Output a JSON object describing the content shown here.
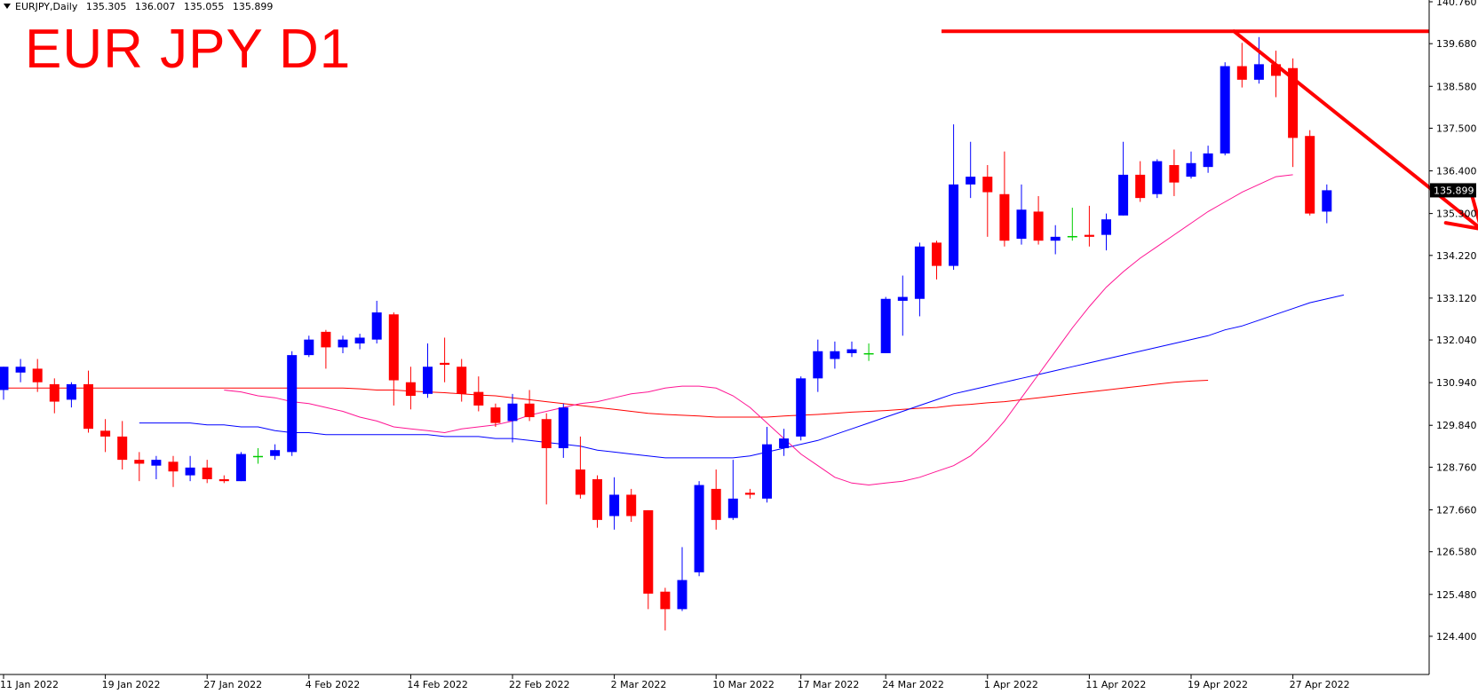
{
  "header": {
    "symbol": "EURJPY,Daily",
    "open": "135.305",
    "high": "136.007",
    "low": "135.055",
    "close": "135.899"
  },
  "annotation": {
    "title_text": "EUR JPY D1",
    "color": "#ff0000"
  },
  "chart_data": {
    "type": "candlestick",
    "title": "EUR JPY D1",
    "price_label": "135.899",
    "y_axis": {
      "min": 123.85,
      "max": 140.76,
      "ticks": [
        "140.760",
        "139.680",
        "138.580",
        "137.500",
        "136.400",
        "135.300",
        "134.220",
        "133.120",
        "132.040",
        "130.940",
        "129.840",
        "128.760",
        "127.660",
        "126.580",
        "125.480",
        "124.400"
      ]
    },
    "x_axis": {
      "labels": [
        {
          "text": "11 Jan 2022",
          "i": 0
        },
        {
          "text": "19 Jan 2022",
          "i": 6
        },
        {
          "text": "27 Jan 2022",
          "i": 12
        },
        {
          "text": "4 Feb 2022",
          "i": 18
        },
        {
          "text": "14 Feb 2022",
          "i": 24
        },
        {
          "text": "22 Feb 2022",
          "i": 30
        },
        {
          "text": "2 Mar 2022",
          "i": 36
        },
        {
          "text": "10 Mar 2022",
          "i": 42
        },
        {
          "text": "17 Mar 2022",
          "i": 47
        },
        {
          "text": "24 Mar 2022",
          "i": 52
        },
        {
          "text": "1 Apr 2022",
          "i": 58
        },
        {
          "text": "11 Apr 2022",
          "i": 64
        },
        {
          "text": "19 Apr 2022",
          "i": 70
        },
        {
          "text": "27 Apr 2022",
          "i": 76
        }
      ]
    },
    "colors": {
      "bull": "#0000ff",
      "bear": "#ff0000",
      "doji": "#00cc00",
      "ma_fast": "#ff1493",
      "ma_mid": "#0000ff",
      "ma_slow": "#ff0000",
      "annotation": "#ff0000"
    },
    "candles": [
      {
        "o": 130.75,
        "h": 131.35,
        "l": 130.5,
        "c": 131.35
      },
      {
        "o": 131.2,
        "h": 131.55,
        "l": 130.95,
        "c": 131.35
      },
      {
        "o": 131.3,
        "h": 131.55,
        "l": 130.7,
        "c": 130.95
      },
      {
        "o": 130.9,
        "h": 131.05,
        "l": 130.15,
        "c": 130.45
      },
      {
        "o": 130.5,
        "h": 130.95,
        "l": 130.3,
        "c": 130.9
      },
      {
        "o": 130.9,
        "h": 131.25,
        "l": 129.65,
        "c": 129.75
      },
      {
        "o": 129.7,
        "h": 130.0,
        "l": 129.15,
        "c": 129.55
      },
      {
        "o": 129.55,
        "h": 129.95,
        "l": 128.7,
        "c": 128.95
      },
      {
        "o": 128.95,
        "h": 129.15,
        "l": 128.4,
        "c": 128.85
      },
      {
        "o": 128.8,
        "h": 129.05,
        "l": 128.45,
        "c": 128.95
      },
      {
        "o": 128.9,
        "h": 129.05,
        "l": 128.25,
        "c": 128.65
      },
      {
        "o": 128.55,
        "h": 129.05,
        "l": 128.4,
        "c": 128.75
      },
      {
        "o": 128.75,
        "h": 128.95,
        "l": 128.35,
        "c": 128.45
      },
      {
        "o": 128.45,
        "h": 128.55,
        "l": 128.35,
        "c": 128.4
      },
      {
        "o": 128.4,
        "h": 129.15,
        "l": 128.4,
        "c": 129.1
      },
      {
        "o": 129.05,
        "h": 129.25,
        "l": 128.85,
        "c": 129.05
      },
      {
        "o": 129.05,
        "h": 129.35,
        "l": 128.95,
        "c": 129.2
      },
      {
        "o": 129.15,
        "h": 131.75,
        "l": 129.05,
        "c": 131.65
      },
      {
        "o": 131.65,
        "h": 132.15,
        "l": 131.6,
        "c": 132.05
      },
      {
        "o": 132.25,
        "h": 132.3,
        "l": 131.3,
        "c": 131.85
      },
      {
        "o": 131.85,
        "h": 132.15,
        "l": 131.7,
        "c": 132.05
      },
      {
        "o": 131.95,
        "h": 132.2,
        "l": 131.8,
        "c": 132.1
      },
      {
        "o": 132.05,
        "h": 133.05,
        "l": 131.95,
        "c": 132.75
      },
      {
        "o": 132.7,
        "h": 132.75,
        "l": 130.35,
        "c": 131.0
      },
      {
        "o": 130.95,
        "h": 131.35,
        "l": 130.25,
        "c": 130.6
      },
      {
        "o": 130.65,
        "h": 131.95,
        "l": 130.55,
        "c": 131.35
      },
      {
        "o": 131.45,
        "h": 132.1,
        "l": 130.95,
        "c": 131.4
      },
      {
        "o": 131.35,
        "h": 131.55,
        "l": 130.45,
        "c": 130.65
      },
      {
        "o": 130.7,
        "h": 131.1,
        "l": 130.2,
        "c": 130.35
      },
      {
        "o": 130.3,
        "h": 130.4,
        "l": 129.8,
        "c": 129.9
      },
      {
        "o": 129.95,
        "h": 130.65,
        "l": 129.4,
        "c": 130.4
      },
      {
        "o": 130.4,
        "h": 130.75,
        "l": 129.95,
        "c": 130.05
      },
      {
        "o": 130.0,
        "h": 130.15,
        "l": 127.8,
        "c": 129.25
      },
      {
        "o": 129.25,
        "h": 130.4,
        "l": 129.0,
        "c": 130.3
      },
      {
        "o": 128.7,
        "h": 129.55,
        "l": 127.95,
        "c": 128.05
      },
      {
        "o": 128.45,
        "h": 128.55,
        "l": 127.2,
        "c": 127.4
      },
      {
        "o": 127.5,
        "h": 128.5,
        "l": 127.15,
        "c": 128.05
      },
      {
        "o": 128.05,
        "h": 128.2,
        "l": 127.35,
        "c": 127.5
      },
      {
        "o": 127.65,
        "h": 127.65,
        "l": 125.1,
        "c": 125.5
      },
      {
        "o": 125.55,
        "h": 125.65,
        "l": 124.55,
        "c": 125.1
      },
      {
        "o": 125.1,
        "h": 126.7,
        "l": 125.05,
        "c": 125.85
      },
      {
        "o": 126.05,
        "h": 128.4,
        "l": 125.95,
        "c": 128.3
      },
      {
        "o": 128.2,
        "h": 128.7,
        "l": 127.15,
        "c": 127.4
      },
      {
        "o": 127.45,
        "h": 128.95,
        "l": 127.4,
        "c": 127.95
      },
      {
        "o": 128.1,
        "h": 128.2,
        "l": 127.95,
        "c": 128.05
      },
      {
        "o": 127.95,
        "h": 129.8,
        "l": 127.85,
        "c": 129.35
      },
      {
        "o": 129.25,
        "h": 129.75,
        "l": 129.05,
        "c": 129.5
      },
      {
        "o": 129.55,
        "h": 131.1,
        "l": 129.45,
        "c": 131.05
      },
      {
        "o": 131.05,
        "h": 132.05,
        "l": 130.7,
        "c": 131.75
      },
      {
        "o": 131.55,
        "h": 132.0,
        "l": 131.3,
        "c": 131.75
      },
      {
        "o": 131.7,
        "h": 132.0,
        "l": 131.6,
        "c": 131.8
      },
      {
        "o": 131.7,
        "h": 131.95,
        "l": 131.5,
        "c": 131.7
      },
      {
        "o": 131.7,
        "h": 133.15,
        "l": 131.7,
        "c": 133.1
      },
      {
        "o": 133.05,
        "h": 133.7,
        "l": 132.15,
        "c": 133.15
      },
      {
        "o": 133.1,
        "h": 134.55,
        "l": 132.65,
        "c": 134.45
      },
      {
        "o": 134.55,
        "h": 134.6,
        "l": 133.6,
        "c": 133.95
      },
      {
        "o": 133.95,
        "h": 137.6,
        "l": 133.85,
        "c": 136.05
      },
      {
        "o": 136.05,
        "h": 137.15,
        "l": 135.7,
        "c": 136.25
      },
      {
        "o": 136.25,
        "h": 136.55,
        "l": 134.7,
        "c": 135.85
      },
      {
        "o": 135.8,
        "h": 136.9,
        "l": 134.45,
        "c": 134.6
      },
      {
        "o": 134.65,
        "h": 136.05,
        "l": 134.5,
        "c": 135.4
      },
      {
        "o": 135.35,
        "h": 135.75,
        "l": 134.5,
        "c": 134.6
      },
      {
        "o": 134.6,
        "h": 135.0,
        "l": 134.25,
        "c": 134.7
      },
      {
        "o": 134.7,
        "h": 135.45,
        "l": 134.6,
        "c": 134.72
      },
      {
        "o": 134.75,
        "h": 135.5,
        "l": 134.45,
        "c": 134.7
      },
      {
        "o": 134.75,
        "h": 135.3,
        "l": 134.35,
        "c": 135.15
      },
      {
        "o": 135.25,
        "h": 137.15,
        "l": 135.25,
        "c": 136.3
      },
      {
        "o": 136.3,
        "h": 136.65,
        "l": 135.6,
        "c": 135.7
      },
      {
        "o": 135.8,
        "h": 136.7,
        "l": 135.7,
        "c": 136.65
      },
      {
        "o": 136.55,
        "h": 136.95,
        "l": 135.75,
        "c": 136.1
      },
      {
        "o": 136.25,
        "h": 136.9,
        "l": 136.2,
        "c": 136.6
      },
      {
        "o": 136.5,
        "h": 137.05,
        "l": 136.35,
        "c": 136.85
      },
      {
        "o": 136.85,
        "h": 139.2,
        "l": 136.8,
        "c": 139.1
      },
      {
        "o": 139.1,
        "h": 139.7,
        "l": 138.55,
        "c": 138.75
      },
      {
        "o": 138.75,
        "h": 139.85,
        "l": 138.65,
        "c": 139.15
      },
      {
        "o": 139.15,
        "h": 139.5,
        "l": 138.3,
        "c": 138.85
      },
      {
        "o": 139.05,
        "h": 139.3,
        "l": 136.5,
        "c": 137.25
      },
      {
        "o": 137.3,
        "h": 137.45,
        "l": 135.25,
        "c": 135.3
      },
      {
        "o": 135.35,
        "h": 136.05,
        "l": 135.05,
        "c": 135.9
      }
    ],
    "ma_fast": [
      130.75,
      130.7,
      130.6,
      130.55,
      130.45,
      130.4,
      130.3,
      130.2,
      130.05,
      129.95,
      129.8,
      129.75,
      129.7,
      129.65,
      129.75,
      129.8,
      129.85,
      129.95,
      130.1,
      130.2,
      130.3,
      130.4,
      130.45,
      130.55,
      130.65,
      130.7,
      130.8,
      130.85,
      130.85,
      130.8,
      130.6,
      130.3,
      129.9,
      129.5,
      129.1,
      128.8,
      128.5,
      128.35,
      128.3,
      128.35,
      128.4,
      128.5,
      128.65,
      128.8,
      129.05,
      129.45,
      129.95,
      130.55,
      131.15,
      131.75,
      132.35,
      132.9,
      133.4,
      133.8,
      134.15,
      134.45,
      134.75,
      135.05,
      135.35,
      135.6,
      135.85,
      136.05,
      136.25,
      136.3
    ],
    "ma_fast_start": 13,
    "ma_mid": [
      129.9,
      129.9,
      129.9,
      129.9,
      129.85,
      129.85,
      129.8,
      129.8,
      129.7,
      129.65,
      129.65,
      129.6,
      129.6,
      129.6,
      129.6,
      129.6,
      129.6,
      129.6,
      129.55,
      129.55,
      129.55,
      129.5,
      129.5,
      129.45,
      129.4,
      129.35,
      129.3,
      129.2,
      129.15,
      129.1,
      129.05,
      129.0,
      129.0,
      129.0,
      129.0,
      129.0,
      129.05,
      129.15,
      129.25,
      129.35,
      129.45,
      129.6,
      129.75,
      129.9,
      130.05,
      130.2,
      130.35,
      130.5,
      130.65,
      130.75,
      130.85,
      130.95,
      131.05,
      131.15,
      131.25,
      131.35,
      131.45,
      131.55,
      131.65,
      131.75,
      131.85,
      131.95,
      132.05,
      132.15,
      132.3,
      132.4,
      132.55,
      132.7,
      132.85,
      133.0,
      133.1,
      133.2
    ],
    "ma_mid_start": 8,
    "ma_slow": [
      130.8,
      130.8,
      130.8,
      130.8,
      130.8,
      130.8,
      130.8,
      130.8,
      130.8,
      130.8,
      130.8,
      130.8,
      130.8,
      130.8,
      130.8,
      130.8,
      130.8,
      130.8,
      130.8,
      130.8,
      130.8,
      130.78,
      130.75,
      130.75,
      130.72,
      130.7,
      130.68,
      130.65,
      130.62,
      130.6,
      130.55,
      130.5,
      130.45,
      130.4,
      130.35,
      130.3,
      130.25,
      130.2,
      130.15,
      130.12,
      130.1,
      130.08,
      130.05,
      130.05,
      130.05,
      130.05,
      130.08,
      130.1,
      130.12,
      130.15,
      130.18,
      130.2,
      130.22,
      130.25,
      130.28,
      130.3,
      130.35,
      130.38,
      130.42,
      130.45,
      130.5,
      130.55,
      130.6,
      130.65,
      130.7,
      130.75,
      130.8,
      130.85,
      130.9,
      130.95,
      130.98,
      131.0
    ],
    "ma_slow_start": 0,
    "resistance": 140.0,
    "projection": {
      "from_index": 72,
      "from_price": 140.0,
      "to_index": 87,
      "to_price": 134.9
    }
  }
}
